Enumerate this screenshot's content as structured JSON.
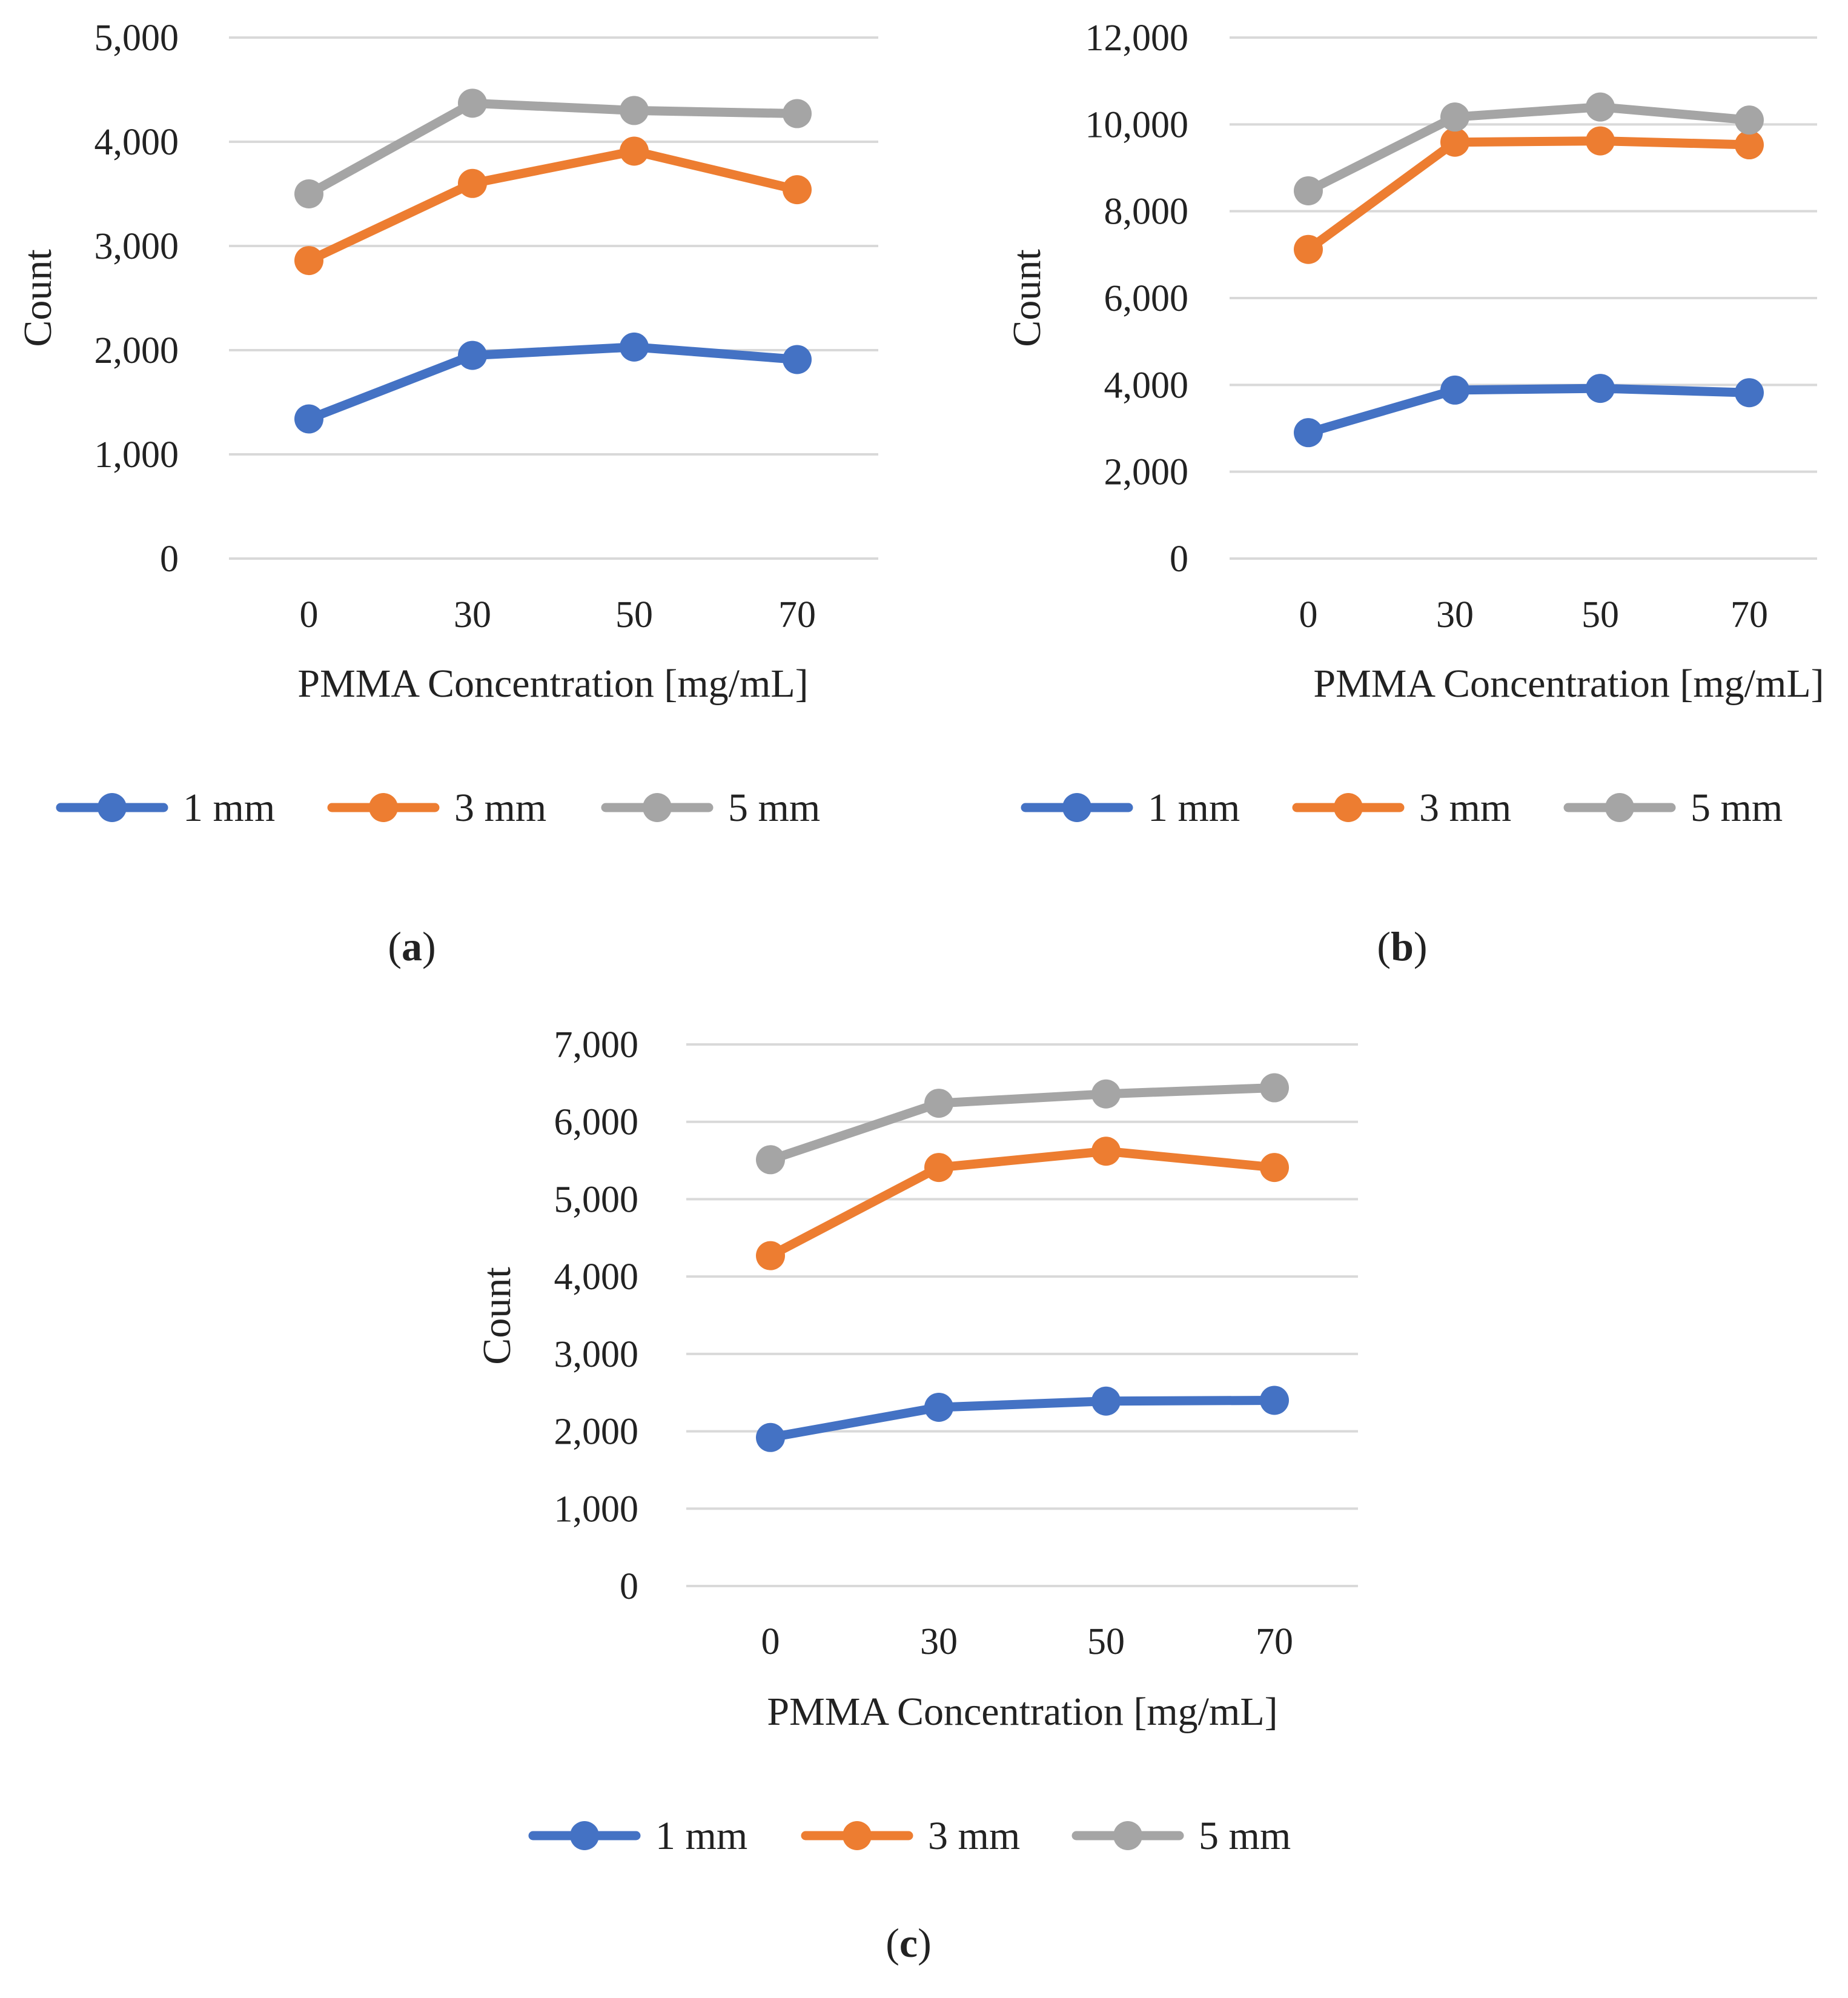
{
  "colors": {
    "series_1mm": "#4472C4",
    "series_3mm": "#ED7D31",
    "series_5mm": "#A5A5A5",
    "gridline": "#D9D9D9",
    "text": "#222222"
  },
  "chart_data": [
    {
      "type": "line",
      "panel": "a",
      "caption": {
        "open": "(",
        "letter": "a",
        "close": ")"
      },
      "xlabel": "PMMA Concentration [mg/mL]",
      "ylabel": "Count",
      "categories": [
        "0",
        "30",
        "50",
        "70"
      ],
      "ylim": [
        0,
        5000
      ],
      "yticks": [
        0,
        1000,
        2000,
        3000,
        4000,
        5000
      ],
      "ytick_labels": [
        "0",
        "1,000",
        "2,000",
        "3,000",
        "4,000",
        "5,000"
      ],
      "grid": true,
      "legend": "bottom",
      "series": [
        {
          "name": "1 mm",
          "color": "#4472C4",
          "values": [
            1340,
            1950,
            2030,
            1910
          ]
        },
        {
          "name": "3 mm",
          "color": "#ED7D31",
          "values": [
            2860,
            3600,
            3910,
            3540
          ]
        },
        {
          "name": "5 mm",
          "color": "#A5A5A5",
          "values": [
            3500,
            4370,
            4300,
            4270
          ]
        }
      ]
    },
    {
      "type": "line",
      "panel": "b",
      "caption": {
        "open": "(",
        "letter": "b",
        "close": ")"
      },
      "xlabel": "PMMA Concentration [mg/mL]",
      "ylabel": "Count",
      "categories": [
        "0",
        "30",
        "50",
        "70"
      ],
      "ylim": [
        0,
        12000
      ],
      "yticks": [
        0,
        2000,
        4000,
        6000,
        8000,
        10000,
        12000
      ],
      "ytick_labels": [
        "0",
        "2,000",
        "4,000",
        "6,000",
        "8,000",
        "10,000",
        "12,000"
      ],
      "grid": true,
      "legend": "bottom",
      "series": [
        {
          "name": "1 mm",
          "color": "#4472C4",
          "values": [
            2900,
            3880,
            3920,
            3820
          ]
        },
        {
          "name": "3 mm",
          "color": "#ED7D31",
          "values": [
            7120,
            9590,
            9620,
            9530
          ]
        },
        {
          "name": "5 mm",
          "color": "#A5A5A5",
          "values": [
            8470,
            10170,
            10400,
            10100
          ]
        }
      ]
    },
    {
      "type": "line",
      "panel": "c",
      "caption": {
        "open": "(",
        "letter": "c",
        "close": ")"
      },
      "xlabel": "PMMA Concentration [mg/mL]",
      "ylabel": "Count",
      "categories": [
        "0",
        "30",
        "50",
        "70"
      ],
      "ylim": [
        0,
        7000
      ],
      "yticks": [
        0,
        1000,
        2000,
        3000,
        4000,
        5000,
        6000,
        7000
      ],
      "ytick_labels": [
        "0",
        "1,000",
        "2,000",
        "3,000",
        "4,000",
        "5,000",
        "6,000",
        "7,000"
      ],
      "grid": true,
      "legend": "bottom",
      "series": [
        {
          "name": "1 mm",
          "color": "#4472C4",
          "values": [
            1920,
            2310,
            2390,
            2400
          ]
        },
        {
          "name": "3 mm",
          "color": "#ED7D31",
          "values": [
            4270,
            5410,
            5620,
            5410
          ]
        },
        {
          "name": "5 mm",
          "color": "#A5A5A5",
          "values": [
            5510,
            6240,
            6360,
            6440
          ]
        }
      ]
    }
  ]
}
